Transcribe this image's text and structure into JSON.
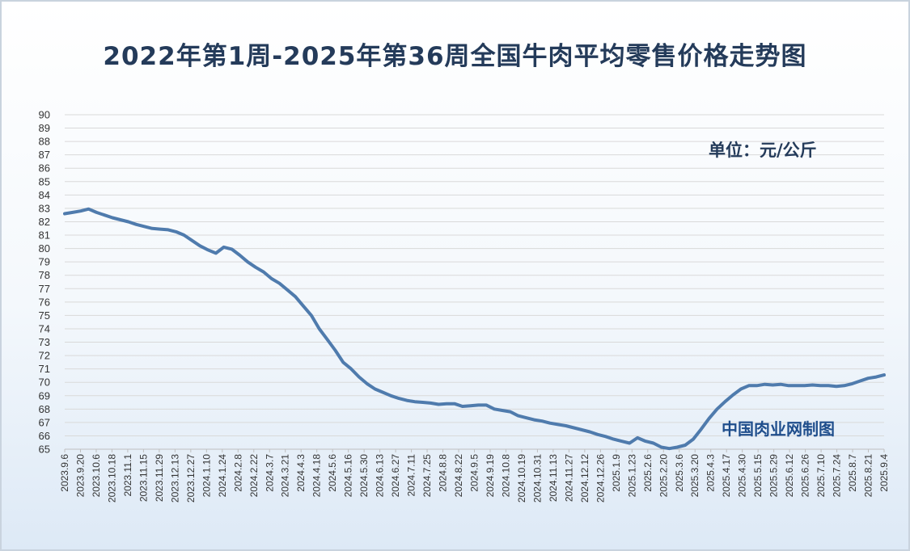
{
  "chart_data": {
    "type": "line",
    "title": "2022年第1周-2025年第36周全国牛肉平均零售价格走势图",
    "unit_label": "单位：元/公斤",
    "source_label": "中国肉业网制图",
    "ylim": [
      65,
      90
    ],
    "ytick_step": 1,
    "grid": "horizontal",
    "legend": "none",
    "line_color": "#4f7bad",
    "x_tick_labels": [
      "2023.9.6",
      "2023.9.20",
      "2023.10.6",
      "2023.10.18",
      "2023.11.1",
      "2023.11.15",
      "2023.11.29",
      "2023.12.13",
      "2023.12.27",
      "2024.1.10",
      "2024.1.24",
      "2024.2.8",
      "2024.2.22",
      "2024.3.7",
      "2024.3.21",
      "2024.4.3",
      "2024.4.18",
      "2024.5.6",
      "2024.5.16",
      "2024.5.30",
      "2024.6.13",
      "2024.6.27",
      "2024.7.11",
      "2024.7.25",
      "2024.8.8",
      "2024.8.22",
      "2024.9.5",
      "2024.9.19",
      "2024.10.8",
      "2024.10.19",
      "2024.10.31",
      "2024.11.13",
      "2024.11.27",
      "2024.12.12",
      "2024.12.26",
      "2025.1.9",
      "2025.1.23",
      "2025.2.6",
      "2025.2.20",
      "2025.3.6",
      "2025.3.20",
      "2025.4.3",
      "2025.4.17",
      "2025.4.30",
      "2025.5.15",
      "2025.5.29",
      "2025.6.12",
      "2025.6.26",
      "2025.7.10",
      "2025.7.24",
      "2025.8.7",
      "2025.8.21",
      "2025.9.4"
    ],
    "series": [
      {
        "values": [
          82.6,
          82.7,
          82.8,
          82.95,
          82.7,
          82.5,
          82.3,
          82.15,
          82.0,
          81.8,
          81.65,
          81.5,
          81.45,
          81.4,
          81.25,
          81.0,
          80.6,
          80.2,
          79.9,
          79.65,
          80.1,
          79.95,
          79.5,
          79.0,
          78.6,
          78.25,
          77.75,
          77.4,
          76.9,
          76.4,
          75.7,
          75.0,
          74.0,
          73.2,
          72.4,
          71.5,
          71.0,
          70.4,
          69.9,
          69.5,
          69.25,
          69.0,
          68.8,
          68.65,
          68.55,
          68.5,
          68.45,
          68.35,
          68.4,
          68.4,
          68.2,
          68.25,
          68.3,
          68.3,
          68.0,
          67.9,
          67.8,
          67.5,
          67.35,
          67.2,
          67.1,
          66.95,
          66.85,
          66.75,
          66.6,
          66.45,
          66.3,
          66.1,
          65.95,
          65.75,
          65.6,
          65.45,
          65.85,
          65.6,
          65.45,
          65.15,
          65.05,
          65.15,
          65.3,
          65.75,
          66.5,
          67.3,
          68.0,
          68.55,
          69.05,
          69.5,
          69.75,
          69.75,
          69.85,
          69.8,
          69.85,
          69.75,
          69.75,
          69.75,
          69.8,
          69.75,
          69.75,
          69.7,
          69.75,
          69.9,
          70.1,
          70.3,
          70.4,
          70.55
        ]
      }
    ]
  }
}
